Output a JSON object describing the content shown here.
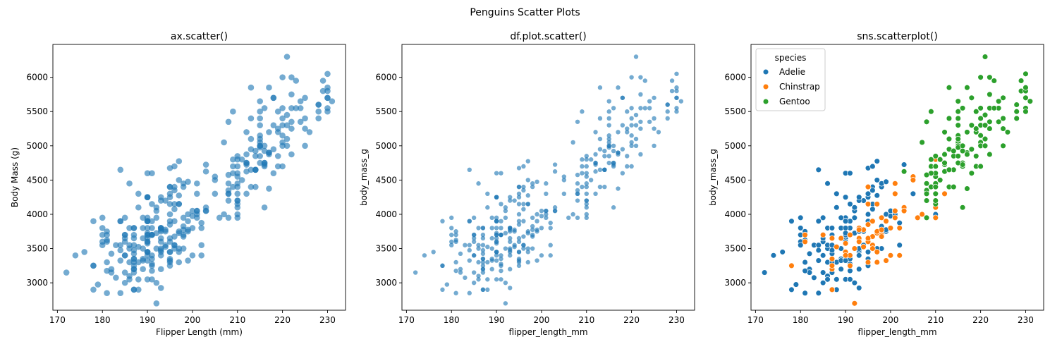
{
  "figure": {
    "suptitle": "Penguins Scatter Plots"
  },
  "colors": {
    "default_point": "#1f77b4",
    "Adelie": "#1f77b4",
    "Chinstrap": "#ff7f0e",
    "Gentoo": "#2ca02c",
    "axis": "#000000"
  },
  "chart_data": [
    {
      "type": "scatter",
      "title": "ax.scatter()",
      "xlabel": "Flipper Length (mm)",
      "ylabel": "Body Mass (g)",
      "xlim": [
        169,
        234
      ],
      "ylim": [
        2600,
        6480
      ],
      "xticks": [
        170,
        180,
        190,
        200,
        210,
        220,
        230
      ],
      "yticks": [
        3000,
        3500,
        4000,
        4500,
        5000,
        5500,
        6000
      ],
      "grid": false,
      "legend": null,
      "style": "ax",
      "source": "penguins"
    },
    {
      "type": "scatter",
      "title": "df.plot.scatter()",
      "xlabel": "flipper_length_mm",
      "ylabel": "body_mass_g",
      "xlim": [
        169,
        234
      ],
      "ylim": [
        2600,
        6480
      ],
      "xticks": [
        170,
        180,
        190,
        200,
        210,
        220,
        230
      ],
      "yticks": [
        3000,
        3500,
        4000,
        4500,
        5000,
        5500,
        6000
      ],
      "grid": false,
      "legend": null,
      "style": "df",
      "source": "penguins"
    },
    {
      "type": "scatter",
      "title": "sns.scatterplot()",
      "xlabel": "flipper_length_mm",
      "ylabel": "body_mass_g",
      "xlim": [
        169,
        234
      ],
      "ylim": [
        2600,
        6480
      ],
      "xticks": [
        170,
        180,
        190,
        200,
        210,
        220,
        230
      ],
      "yticks": [
        3000,
        3500,
        4000,
        4500,
        5000,
        5500,
        6000
      ],
      "grid": false,
      "legend": {
        "title": "species",
        "placement": "upper left",
        "entries": [
          "Adelie",
          "Chinstrap",
          "Gentoo"
        ]
      },
      "style": "sns",
      "source": "penguins"
    }
  ],
  "penguins": {
    "Adelie": [
      [
        181,
        3750
      ],
      [
        186,
        3800
      ],
      [
        195,
        3250
      ],
      [
        193,
        3450
      ],
      [
        190,
        3650
      ],
      [
        181,
        3625
      ],
      [
        195,
        4675
      ],
      [
        193,
        3475
      ],
      [
        190,
        4250
      ],
      [
        186,
        3300
      ],
      [
        180,
        3700
      ],
      [
        182,
        3200
      ],
      [
        191,
        3800
      ],
      [
        198,
        4400
      ],
      [
        185,
        3700
      ],
      [
        195,
        3450
      ],
      [
        197,
        4500
      ],
      [
        184,
        3325
      ],
      [
        194,
        4200
      ],
      [
        174,
        3400
      ],
      [
        180,
        3600
      ],
      [
        189,
        3800
      ],
      [
        185,
        3950
      ],
      [
        180,
        3800
      ],
      [
        187,
        3800
      ],
      [
        183,
        3550
      ],
      [
        187,
        3200
      ],
      [
        172,
        3150
      ],
      [
        180,
        3950
      ],
      [
        178,
        3250
      ],
      [
        178,
        3900
      ],
      [
        188,
        3300
      ],
      [
        184,
        3900
      ],
      [
        195,
        3325
      ],
      [
        196,
        4150
      ],
      [
        190,
        3950
      ],
      [
        180,
        3550
      ],
      [
        181,
        3300
      ],
      [
        184,
        4650
      ],
      [
        182,
        3150
      ],
      [
        195,
        3900
      ],
      [
        186,
        3100
      ],
      [
        196,
        4400
      ],
      [
        185,
        3000
      ],
      [
        190,
        4600
      ],
      [
        182,
        3425
      ],
      [
        179,
        2975
      ],
      [
        190,
        3450
      ],
      [
        191,
        4150
      ],
      [
        186,
        3500
      ],
      [
        188,
        4300
      ],
      [
        190,
        3450
      ],
      [
        200,
        4050
      ],
      [
        187,
        2900
      ],
      [
        191,
        3700
      ],
      [
        186,
        3550
      ],
      [
        193,
        3800
      ],
      [
        181,
        2850
      ],
      [
        194,
        3750
      ],
      [
        185,
        3150
      ],
      [
        195,
        4400
      ],
      [
        185,
        3600
      ],
      [
        192,
        4050
      ],
      [
        184,
        2850
      ],
      [
        192,
        3950
      ],
      [
        195,
        3350
      ],
      [
        188,
        4100
      ],
      [
        190,
        3050
      ],
      [
        198,
        4450
      ],
      [
        190,
        3600
      ],
      [
        190,
        3900
      ],
      [
        196,
        3550
      ],
      [
        197,
        4150
      ],
      [
        190,
        3700
      ],
      [
        195,
        4250
      ],
      [
        191,
        3700
      ],
      [
        184,
        3900
      ],
      [
        187,
        3550
      ],
      [
        195,
        4000
      ],
      [
        189,
        3200
      ],
      [
        196,
        4700
      ],
      [
        187,
        3800
      ],
      [
        193,
        4200
      ],
      [
        191,
        3350
      ],
      [
        194,
        3550
      ],
      [
        190,
        3800
      ],
      [
        189,
        3500
      ],
      [
        189,
        3950
      ],
      [
        190,
        3600
      ],
      [
        202,
        3550
      ],
      [
        205,
        4300
      ],
      [
        185,
        3400
      ],
      [
        186,
        4450
      ],
      [
        187,
        3300
      ],
      [
        208,
        4300
      ],
      [
        190,
        3700
      ],
      [
        196,
        4350
      ],
      [
        178,
        2900
      ],
      [
        192,
        4100
      ],
      [
        192,
        3725
      ],
      [
        203,
        4725
      ],
      [
        183,
        3075
      ],
      [
        190,
        4250
      ],
      [
        193,
        2925
      ],
      [
        184,
        3550
      ],
      [
        199,
        3750
      ],
      [
        190,
        3900
      ],
      [
        181,
        3175
      ],
      [
        197,
        4775
      ],
      [
        198,
        3825
      ],
      [
        191,
        4600
      ],
      [
        193,
        3200
      ],
      [
        197,
        4275
      ],
      [
        191,
        3900
      ],
      [
        196,
        4075
      ],
      [
        188,
        2900
      ],
      [
        199,
        3775
      ],
      [
        189,
        3350
      ],
      [
        189,
        3325
      ],
      [
        187,
        3150
      ],
      [
        198,
        3500
      ],
      [
        176,
        3450
      ],
      [
        202,
        3875
      ],
      [
        186,
        3050
      ],
      [
        199,
        4000
      ],
      [
        191,
        3275
      ],
      [
        195,
        4300
      ],
      [
        191,
        3050
      ],
      [
        210,
        4000
      ],
      [
        190,
        3325
      ],
      [
        197,
        3500
      ],
      [
        193,
        3500
      ],
      [
        199,
        4475
      ],
      [
        187,
        3425
      ],
      [
        190,
        3900
      ],
      [
        191,
        3175
      ],
      [
        200,
        3975
      ],
      [
        185,
        3400
      ],
      [
        193,
        4250
      ],
      [
        193,
        3400
      ],
      [
        187,
        3475
      ],
      [
        188,
        3050
      ],
      [
        190,
        3725
      ],
      [
        192,
        3000
      ],
      [
        185,
        3650
      ],
      [
        190,
        4250
      ],
      [
        184,
        3475
      ],
      [
        195,
        3450
      ],
      [
        193,
        3750
      ],
      [
        187,
        3700
      ],
      [
        201,
        4000
      ]
    ],
    "Chinstrap": [
      [
        192,
        3500
      ],
      [
        196,
        3900
      ],
      [
        193,
        3650
      ],
      [
        188,
        3525
      ],
      [
        197,
        3725
      ],
      [
        198,
        3950
      ],
      [
        178,
        3250
      ],
      [
        197,
        3750
      ],
      [
        195,
        4150
      ],
      [
        198,
        3700
      ],
      [
        193,
        3800
      ],
      [
        194,
        3775
      ],
      [
        185,
        3700
      ],
      [
        201,
        4050
      ],
      [
        190,
        3575
      ],
      [
        201,
        4050
      ],
      [
        197,
        3300
      ],
      [
        181,
        3700
      ],
      [
        190,
        3450
      ],
      [
        195,
        4400
      ],
      [
        181,
        3600
      ],
      [
        191,
        3400
      ],
      [
        187,
        2900
      ],
      [
        193,
        3800
      ],
      [
        195,
        3300
      ],
      [
        197,
        4150
      ],
      [
        200,
        3400
      ],
      [
        200,
        3800
      ],
      [
        191,
        3700
      ],
      [
        205,
        4550
      ],
      [
        187,
        3200
      ],
      [
        201,
        4300
      ],
      [
        187,
        3350
      ],
      [
        203,
        4100
      ],
      [
        195,
        3600
      ],
      [
        199,
        3900
      ],
      [
        195,
        3850
      ],
      [
        210,
        4800
      ],
      [
        192,
        2700
      ],
      [
        205,
        4500
      ],
      [
        210,
        3950
      ],
      [
        187,
        3650
      ],
      [
        196,
        3550
      ],
      [
        196,
        3500
      ],
      [
        196,
        3675
      ],
      [
        201,
        4450
      ],
      [
        190,
        3400
      ],
      [
        212,
        4300
      ],
      [
        187,
        3250
      ],
      [
        198,
        3675
      ],
      [
        199,
        3325
      ],
      [
        201,
        3950
      ],
      [
        193,
        3600
      ],
      [
        203,
        4050
      ],
      [
        187,
        3350
      ],
      [
        197,
        3450
      ],
      [
        191,
        3250
      ],
      [
        203,
        4050
      ],
      [
        202,
        3800
      ],
      [
        194,
        3525
      ],
      [
        206,
        3950
      ],
      [
        189,
        3650
      ],
      [
        195,
        3650
      ],
      [
        207,
        4000
      ],
      [
        202,
        3400
      ],
      [
        193,
        3775
      ],
      [
        210,
        4100
      ],
      [
        198,
        3775
      ]
    ],
    "Gentoo": [
      [
        211,
        4500
      ],
      [
        230,
        5700
      ],
      [
        210,
        4450
      ],
      [
        218,
        5700
      ],
      [
        215,
        5400
      ],
      [
        210,
        4550
      ],
      [
        211,
        4800
      ],
      [
        219,
        5200
      ],
      [
        209,
        4400
      ],
      [
        215,
        5150
      ],
      [
        214,
        4650
      ],
      [
        216,
        5550
      ],
      [
        214,
        4650
      ],
      [
        213,
        5850
      ],
      [
        210,
        4200
      ],
      [
        217,
        5850
      ],
      [
        210,
        4150
      ],
      [
        221,
        6300
      ],
      [
        209,
        4800
      ],
      [
        222,
        5350
      ],
      [
        218,
        5700
      ],
      [
        215,
        5000
      ],
      [
        213,
        4400
      ],
      [
        215,
        5050
      ],
      [
        215,
        5000
      ],
      [
        215,
        5100
      ],
      [
        216,
        4100
      ],
      [
        215,
        5650
      ],
      [
        210,
        4600
      ],
      [
        220,
        5550
      ],
      [
        222,
        5250
      ],
      [
        209,
        4700
      ],
      [
        207,
        5050
      ],
      [
        230,
        6050
      ],
      [
        220,
        5150
      ],
      [
        220,
        5400
      ],
      [
        213,
        4950
      ],
      [
        219,
        5250
      ],
      [
        208,
        4350
      ],
      [
        208,
        5350
      ],
      [
        208,
        3950
      ],
      [
        225,
        5700
      ],
      [
        210,
        4300
      ],
      [
        216,
        4750
      ],
      [
        222,
        5550
      ],
      [
        217,
        4900
      ],
      [
        210,
        4200
      ],
      [
        225,
        5400
      ],
      [
        213,
        5100
      ],
      [
        215,
        5300
      ],
      [
        210,
        4850
      ],
      [
        220,
        5300
      ],
      [
        210,
        4400
      ],
      [
        225,
        5000
      ],
      [
        217,
        4900
      ],
      [
        220,
        5050
      ],
      [
        208,
        4300
      ],
      [
        220,
        5000
      ],
      [
        208,
        4450
      ],
      [
        224,
        5550
      ],
      [
        208,
        4200
      ],
      [
        221,
        5300
      ],
      [
        214,
        4400
      ],
      [
        231,
        5650
      ],
      [
        219,
        4700
      ],
      [
        230,
        5700
      ],
      [
        214,
        4650
      ],
      [
        229,
        5800
      ],
      [
        220,
        4700
      ],
      [
        223,
        5550
      ],
      [
        216,
        4750
      ],
      [
        221,
        5000
      ],
      [
        221,
        5100
      ],
      [
        217,
        5200
      ],
      [
        216,
        4700
      ],
      [
        230,
        5800
      ],
      [
        209,
        4600
      ],
      [
        220,
        6000
      ],
      [
        215,
        4750
      ],
      [
        223,
        5950
      ],
      [
        212,
        4625
      ],
      [
        221,
        5450
      ],
      [
        212,
        4725
      ],
      [
        224,
        5350
      ],
      [
        212,
        4750
      ],
      [
        228,
        5600
      ],
      [
        218,
        4600
      ],
      [
        218,
        5300
      ],
      [
        212,
        4875
      ],
      [
        230,
        5550
      ],
      [
        218,
        4950
      ],
      [
        228,
        5400
      ],
      [
        212,
        4750
      ],
      [
        224,
        5650
      ],
      [
        214,
        4850
      ],
      [
        226,
        5200
      ],
      [
        216,
        4925
      ],
      [
        222,
        4875
      ],
      [
        203,
        4625
      ],
      [
        225,
        5250
      ],
      [
        219,
        4850
      ],
      [
        228,
        5600
      ],
      [
        215,
        4975
      ],
      [
        228,
        5500
      ],
      [
        216,
        4725
      ],
      [
        215,
        5500
      ],
      [
        210,
        4700
      ],
      [
        219,
        5500
      ],
      [
        208,
        4575
      ],
      [
        209,
        5500
      ],
      [
        216,
        5000
      ],
      [
        229,
        5950
      ],
      [
        213,
        4650
      ],
      [
        230,
        5500
      ],
      [
        217,
        4375
      ],
      [
        230,
        5850
      ],
      [
        217,
        4875
      ],
      [
        222,
        6000
      ],
      [
        214,
        4925
      ],
      [
        215,
        4850
      ],
      [
        222,
        5750
      ],
      [
        212,
        5200
      ],
      [
        213,
        5400
      ]
    ]
  }
}
